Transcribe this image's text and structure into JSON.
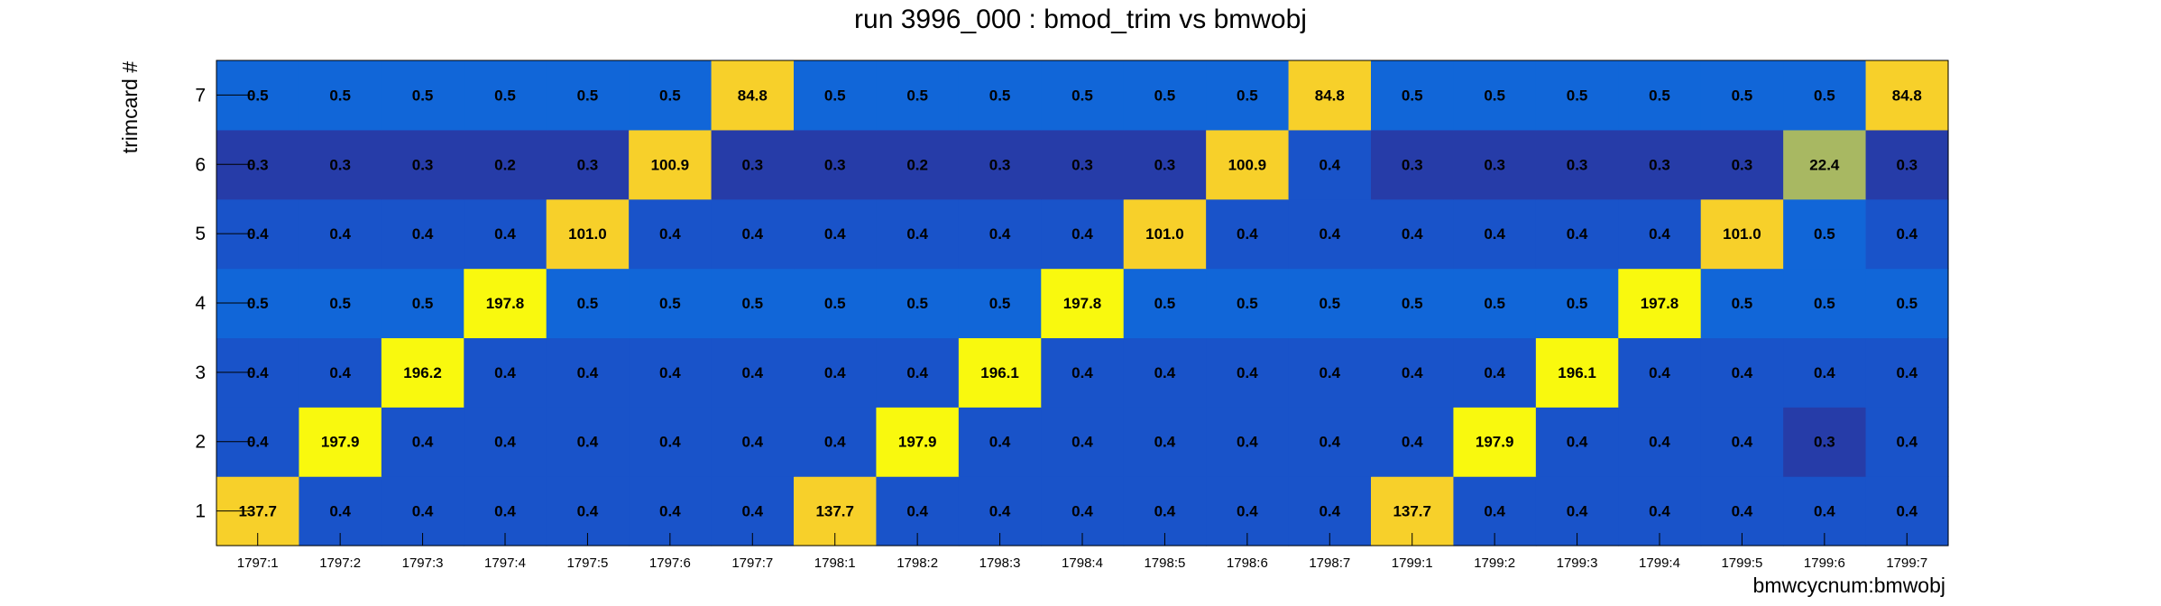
{
  "chart_data": {
    "type": "heatmap",
    "title": "run 3996_000 : bmod_trim vs bmwobj",
    "xlabel": "bmwcycnum:bmwobj",
    "ylabel": "trimcard #",
    "x_categories": [
      "1797:1",
      "1797:2",
      "1797:3",
      "1797:4",
      "1797:5",
      "1797:6",
      "1797:7",
      "1798:1",
      "1798:2",
      "1798:3",
      "1798:4",
      "1798:5",
      "1798:6",
      "1798:7",
      "1799:1",
      "1799:2",
      "1799:3",
      "1799:4",
      "1799:5",
      "1799:6",
      "1799:7"
    ],
    "y_categories": [
      "1",
      "2",
      "3",
      "4",
      "5",
      "6",
      "7"
    ],
    "values": [
      [
        137.7,
        0.4,
        0.4,
        0.4,
        0.4,
        0.4,
        0.4,
        137.7,
        0.4,
        0.4,
        0.4,
        0.4,
        0.4,
        0.4,
        137.7,
        0.4,
        0.4,
        0.4,
        0.4,
        0.4,
        0.4
      ],
      [
        0.4,
        197.9,
        0.4,
        0.4,
        0.4,
        0.4,
        0.4,
        0.4,
        197.9,
        0.4,
        0.4,
        0.4,
        0.4,
        0.4,
        0.4,
        197.9,
        0.4,
        0.4,
        0.4,
        0.3,
        0.4
      ],
      [
        0.4,
        0.4,
        196.2,
        0.4,
        0.4,
        0.4,
        0.4,
        0.4,
        0.4,
        196.1,
        0.4,
        0.4,
        0.4,
        0.4,
        0.4,
        0.4,
        196.1,
        0.4,
        0.4,
        0.4,
        0.4
      ],
      [
        0.5,
        0.5,
        0.5,
        197.8,
        0.5,
        0.5,
        0.5,
        0.5,
        0.5,
        0.5,
        197.8,
        0.5,
        0.5,
        0.5,
        0.5,
        0.5,
        0.5,
        197.8,
        0.5,
        0.5,
        0.5
      ],
      [
        0.4,
        0.4,
        0.4,
        0.4,
        101.0,
        0.4,
        0.4,
        0.4,
        0.4,
        0.4,
        0.4,
        101.0,
        0.4,
        0.4,
        0.4,
        0.4,
        0.4,
        0.4,
        101.0,
        0.5,
        0.4
      ],
      [
        0.3,
        0.3,
        0.3,
        0.2,
        0.3,
        100.9,
        0.3,
        0.3,
        0.2,
        0.3,
        0.3,
        0.3,
        100.9,
        0.4,
        0.3,
        0.3,
        0.3,
        0.3,
        0.3,
        22.4,
        0.3
      ],
      [
        0.5,
        0.5,
        0.5,
        0.5,
        0.5,
        0.5,
        84.8,
        0.5,
        0.5,
        0.5,
        0.5,
        0.5,
        0.5,
        84.8,
        0.5,
        0.5,
        0.5,
        0.5,
        0.5,
        0.5,
        84.8
      ]
    ],
    "colors": {
      "highest": "#f9f90e",
      "high": "#f7d02a",
      "mid": "#a8b862",
      "low_plus": "#1166d8",
      "low": "#1953c9",
      "lowest": "#263ca8"
    },
    "grid": false,
    "legend": "none"
  }
}
